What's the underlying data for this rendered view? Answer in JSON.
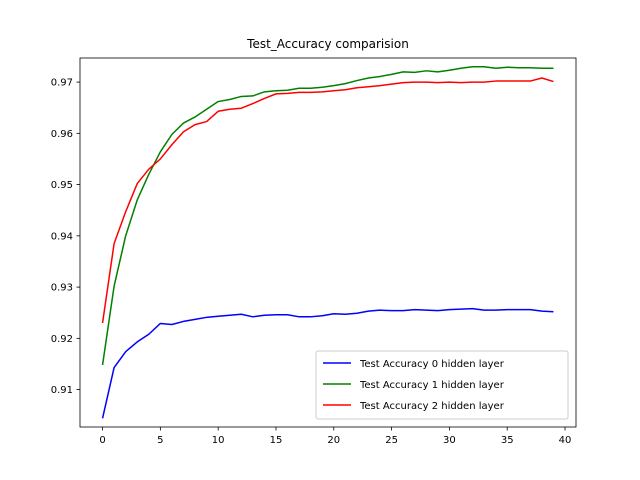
{
  "chart_data": {
    "type": "line",
    "title": "Test_Accuracy comparision",
    "xlabel": "",
    "ylabel": "",
    "xlim": [
      -1.95,
      40.95
    ],
    "ylim": [
      0.9027,
      0.9747
    ],
    "xticks": [
      0,
      5,
      10,
      15,
      20,
      25,
      30,
      35,
      40
    ],
    "yticks": [
      0.91,
      0.92,
      0.93,
      0.94,
      0.95,
      0.96,
      0.97
    ],
    "grid": false,
    "legend_position": "lower-right",
    "x": [
      0,
      1,
      2,
      3,
      4,
      5,
      6,
      7,
      8,
      9,
      10,
      11,
      12,
      13,
      14,
      15,
      16,
      17,
      18,
      19,
      20,
      21,
      22,
      23,
      24,
      25,
      26,
      27,
      28,
      29,
      30,
      31,
      32,
      33,
      34,
      35,
      36,
      37,
      38,
      39
    ],
    "series": [
      {
        "name": "Test Accuracy 0 hidden layer",
        "color": "#0000ff",
        "values": [
          0.9044,
          0.9143,
          0.9174,
          0.9193,
          0.9208,
          0.9229,
          0.9227,
          0.9233,
          0.9237,
          0.9241,
          0.9243,
          0.9245,
          0.9247,
          0.9242,
          0.9245,
          0.9246,
          0.9246,
          0.9242,
          0.9242,
          0.9244,
          0.9248,
          0.9247,
          0.9249,
          0.9253,
          0.9255,
          0.9254,
          0.9254,
          0.9256,
          0.9255,
          0.9254,
          0.9256,
          0.9257,
          0.9258,
          0.9255,
          0.9255,
          0.9256,
          0.9256,
          0.9256,
          0.9253,
          0.9252
        ]
      },
      {
        "name": "Test Accuracy 1 hidden layer",
        "color": "#008000",
        "values": [
          0.9148,
          0.9302,
          0.94,
          0.947,
          0.952,
          0.9564,
          0.9598,
          0.962,
          0.9632,
          0.9647,
          0.9662,
          0.9666,
          0.9672,
          0.9673,
          0.9681,
          0.9683,
          0.9684,
          0.9688,
          0.9688,
          0.969,
          0.9693,
          0.9697,
          0.9703,
          0.9708,
          0.9711,
          0.9715,
          0.972,
          0.9719,
          0.9722,
          0.972,
          0.9723,
          0.9727,
          0.973,
          0.973,
          0.9727,
          0.9729,
          0.9728,
          0.9728,
          0.9727,
          0.9727
        ]
      },
      {
        "name": "Test Accuracy 2 hidden layer",
        "color": "#ff0000",
        "values": [
          0.923,
          0.9385,
          0.9447,
          0.9502,
          0.953,
          0.955,
          0.9578,
          0.9603,
          0.9617,
          0.9623,
          0.9643,
          0.9647,
          0.9649,
          0.9658,
          0.9668,
          0.9677,
          0.9678,
          0.968,
          0.968,
          0.9681,
          0.9683,
          0.9685,
          0.9689,
          0.9691,
          0.9693,
          0.9696,
          0.9699,
          0.97,
          0.97,
          0.9699,
          0.97,
          0.9699,
          0.97,
          0.97,
          0.9702,
          0.9702,
          0.9702,
          0.9702,
          0.9708,
          0.9701
        ]
      }
    ]
  }
}
